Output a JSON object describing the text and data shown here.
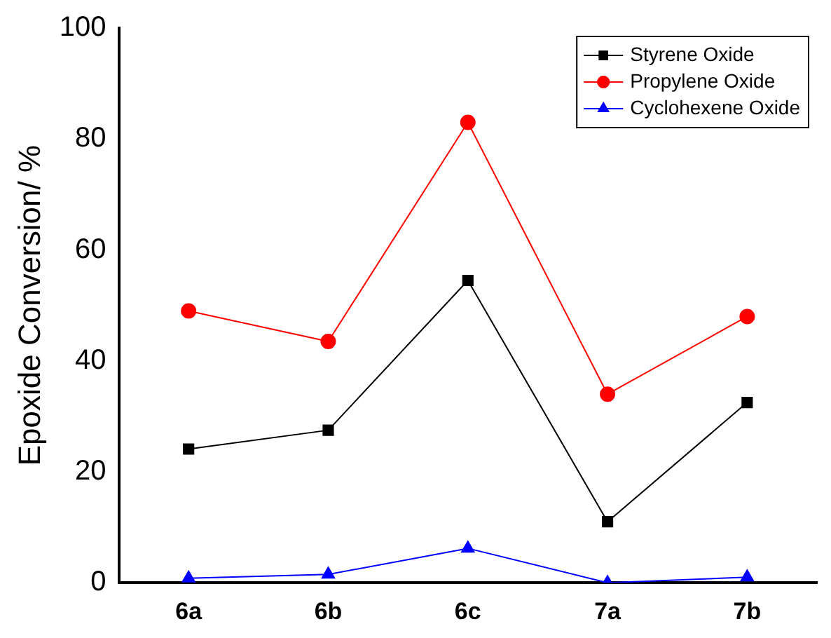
{
  "chart_data": {
    "type": "line",
    "ylabel": "Epoxide Conversion/ %",
    "categories": [
      "6a",
      "6b",
      "6c",
      "7a",
      "7b"
    ],
    "series": [
      {
        "name": "Styrene Oxide",
        "color": "#000000",
        "marker": "square",
        "values": [
          24.1,
          27.5,
          54.5,
          11,
          32.5
        ]
      },
      {
        "name": "Propylene Oxide",
        "color": "#ff0000",
        "marker": "circle",
        "values": [
          49,
          43.5,
          83,
          34,
          48
        ]
      },
      {
        "name": "Cyclohexene Oxide",
        "color": "#0000ff",
        "marker": "triangle",
        "values": [
          0.8,
          1.5,
          6.2,
          0,
          1
        ]
      }
    ],
    "ylim": [
      0,
      100
    ],
    "yticks": [
      0,
      20,
      40,
      60,
      80,
      100
    ],
    "grid": false,
    "legend": "top right",
    "line_style": "solid"
  }
}
